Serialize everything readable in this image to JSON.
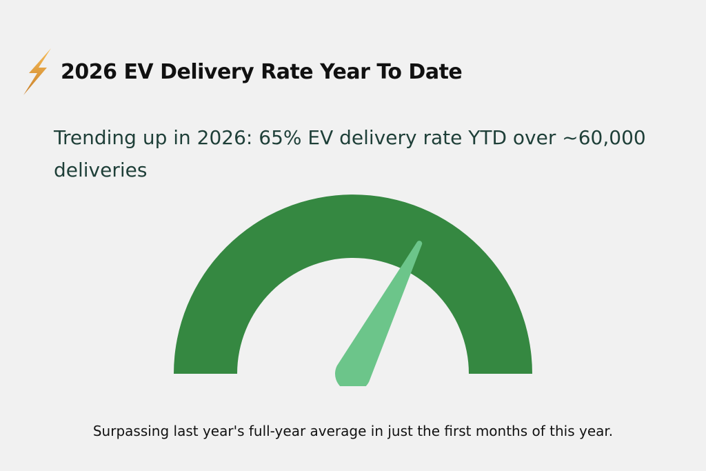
{
  "title": "2026 EV Delivery Rate Year To Date",
  "subtitle": "Trending up in 2026: 65% EV delivery rate YTD over ~60,000 deliveries",
  "footnote": "Surpassing last year's full-year average in just the first months of this year.",
  "icons": {
    "title_icon": "lightning-bolt-icon"
  },
  "colors": {
    "background": "#f1f1f1",
    "gauge_arc": "#358841",
    "needle": "#6cc58a",
    "bolt_light": "#f5b347",
    "bolt_dark": "#c77b25"
  },
  "chart_data": {
    "type": "gauge",
    "value_percent": 65,
    "range": [
      0,
      100
    ]
  }
}
